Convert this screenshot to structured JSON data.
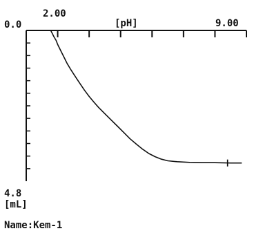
{
  "chart_data": {
    "type": "line",
    "x_axis": {
      "position": "top",
      "label": "[pH]",
      "range": [
        2.0,
        9.0
      ],
      "range_labels": [
        "2.00",
        "9.00"
      ],
      "major_ticks": [
        2,
        3,
        4,
        5,
        6,
        7,
        8,
        9
      ]
    },
    "y_axis": {
      "position": "left",
      "inverted": true,
      "unit_label": "[mL]",
      "range": [
        0.0,
        4.8
      ],
      "range_labels": [
        "0.0",
        "4.8"
      ],
      "minor_ticks": [
        0.4,
        0.8,
        1.2,
        1.6,
        2.0,
        2.4,
        2.8,
        3.2,
        3.6,
        4.0,
        4.4
      ]
    },
    "grid": false,
    "series": [
      {
        "points": [
          [
            2.78,
            0.0
          ],
          [
            2.83,
            0.1
          ],
          [
            2.88,
            0.2
          ],
          [
            2.95,
            0.32
          ],
          [
            3.0,
            0.45
          ],
          [
            3.1,
            0.65
          ],
          [
            3.2,
            0.85
          ],
          [
            3.3,
            1.05
          ],
          [
            3.4,
            1.22
          ],
          [
            3.55,
            1.45
          ],
          [
            3.7,
            1.68
          ],
          [
            3.85,
            1.9
          ],
          [
            4.0,
            2.1
          ],
          [
            4.15,
            2.28
          ],
          [
            4.3,
            2.45
          ],
          [
            4.5,
            2.65
          ],
          [
            4.7,
            2.85
          ],
          [
            4.9,
            3.05
          ],
          [
            5.1,
            3.25
          ],
          [
            5.3,
            3.45
          ],
          [
            5.5,
            3.62
          ],
          [
            5.7,
            3.78
          ],
          [
            5.9,
            3.92
          ],
          [
            6.1,
            4.02
          ],
          [
            6.3,
            4.1
          ],
          [
            6.5,
            4.15
          ],
          [
            6.8,
            4.18
          ],
          [
            7.2,
            4.2
          ],
          [
            7.6,
            4.21
          ],
          [
            8.0,
            4.21
          ],
          [
            8.5,
            4.22
          ],
          [
            8.85,
            4.22
          ]
        ],
        "end_marker": [
          8.4,
          4.22
        ]
      }
    ]
  },
  "footer": {
    "name_label": "Name:Kem-1"
  }
}
